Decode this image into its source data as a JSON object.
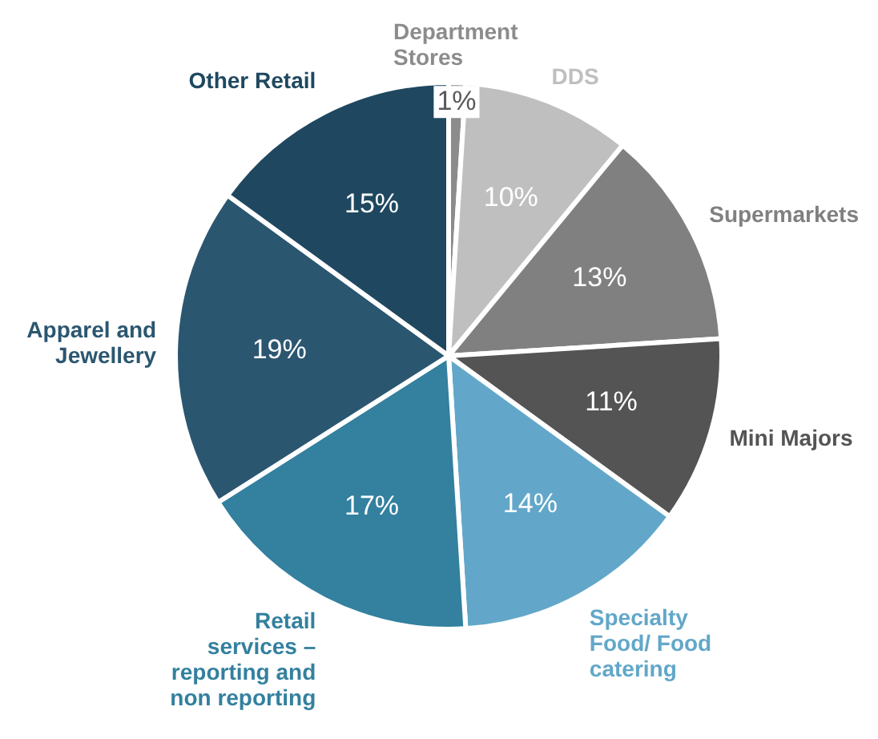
{
  "chart_data": {
    "type": "pie",
    "categories": [
      "Department Stores",
      "DDS",
      "Supermarkets",
      "Mini Majors",
      "Specialty Food/ Food catering",
      "Retail services – reporting and non reporting",
      "Apparel and Jewellery",
      "Other Retail"
    ],
    "values": [
      1,
      10,
      13,
      11,
      14,
      17,
      19,
      15
    ],
    "value_labels": [
      "1%",
      "10%",
      "13%",
      "11%",
      "14%",
      "17%",
      "19%",
      "15%"
    ],
    "colors": [
      "#8c8c8c",
      "#bfbfbf",
      "#808080",
      "#545454",
      "#62a7c9",
      "#33809f",
      "#2b5670",
      "#1f4860"
    ],
    "legend": false
  }
}
